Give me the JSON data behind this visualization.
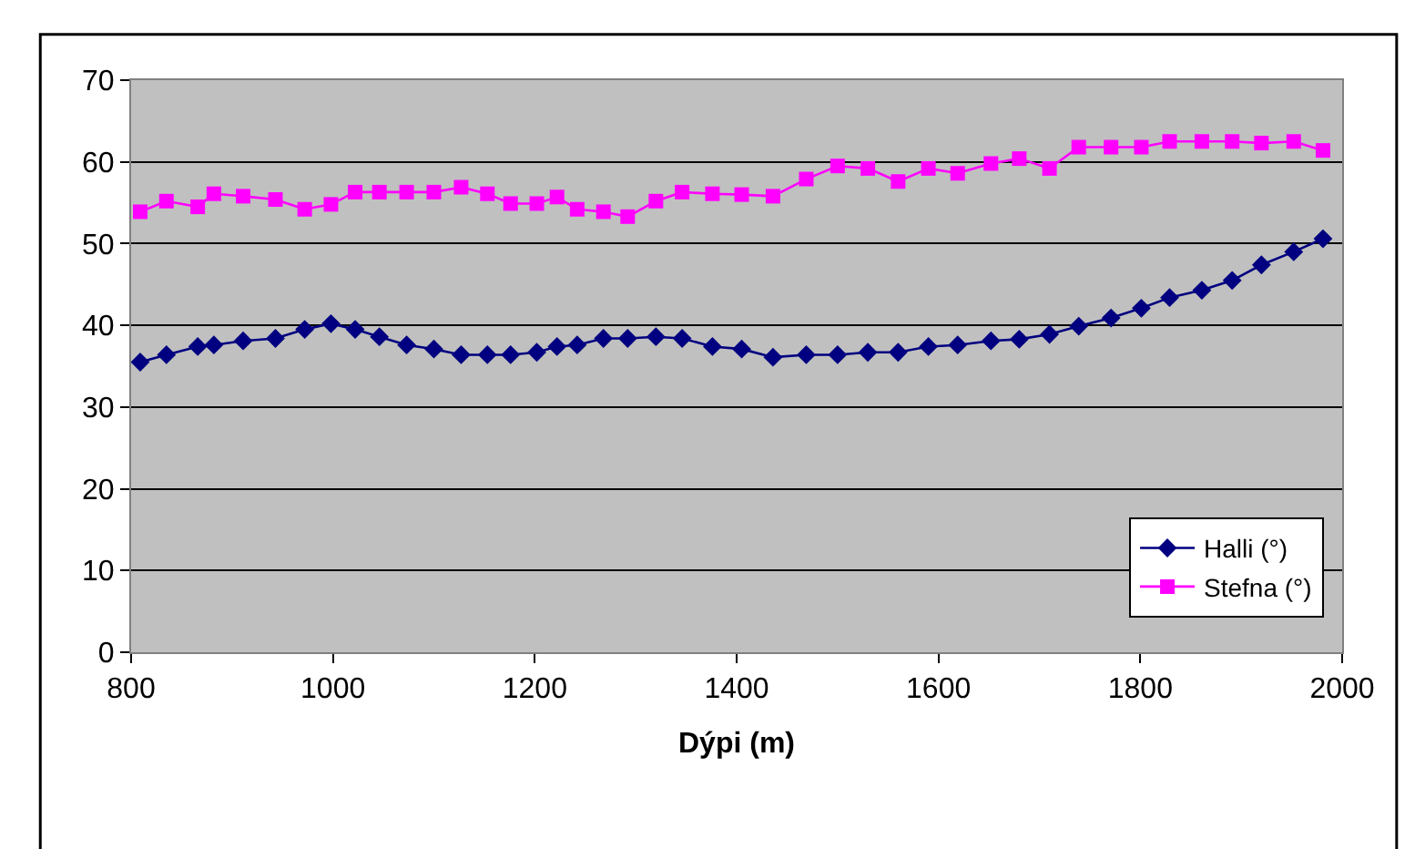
{
  "chart_data": {
    "type": "line",
    "xlabel": "Dýpi (m)",
    "x": [
      809,
      835,
      866,
      882,
      911,
      943,
      972,
      998,
      1022,
      1046,
      1073,
      1100,
      1127,
      1153,
      1176,
      1202,
      1222,
      1242,
      1268,
      1292,
      1320,
      1346,
      1376,
      1405,
      1436,
      1469,
      1500,
      1530,
      1560,
      1590,
      1619,
      1652,
      1680,
      1710,
      1739,
      1771,
      1801,
      1829,
      1861,
      1891,
      1920,
      1952,
      1981
    ],
    "series": [
      {
        "name": "Halli (°)",
        "color": "#000080",
        "marker": "diamond",
        "values": [
          35.5,
          36.4,
          37.4,
          37.6,
          38.1,
          38.4,
          39.5,
          40.2,
          39.5,
          38.6,
          37.6,
          37.1,
          36.4,
          36.4,
          36.4,
          36.7,
          37.4,
          37.6,
          38.4,
          38.4,
          38.6,
          38.4,
          37.4,
          37.1,
          36.1,
          36.4,
          36.4,
          36.7,
          36.7,
          37.4,
          37.6,
          38.1,
          38.3,
          38.9,
          39.9,
          40.9,
          42.1,
          43.4,
          44.3,
          45.5,
          47.4,
          49.0,
          50.6
        ]
      },
      {
        "name": "Stefna (°)",
        "color": "#ff00ff",
        "marker": "square",
        "values": [
          53.9,
          55.2,
          54.5,
          56.1,
          55.8,
          55.4,
          54.2,
          54.8,
          56.3,
          56.3,
          56.3,
          56.3,
          56.9,
          56.1,
          54.9,
          54.9,
          55.7,
          54.2,
          53.9,
          53.3,
          55.2,
          56.3,
          56.1,
          56.0,
          55.8,
          57.9,
          59.5,
          59.2,
          57.6,
          59.2,
          58.6,
          59.8,
          60.4,
          59.2,
          61.8,
          61.8,
          61.8,
          62.5,
          62.5,
          62.5,
          62.3,
          62.5,
          61.4
        ]
      }
    ],
    "xlim": [
      800,
      2000
    ],
    "xticks": [
      800,
      1000,
      1200,
      1400,
      1600,
      1800,
      2000
    ],
    "ylim": [
      0,
      70
    ],
    "yticks": [
      0,
      10,
      20,
      30,
      40,
      50,
      60,
      70
    ],
    "grid": "y",
    "legend": "bottom right",
    "line_style": "solid"
  }
}
